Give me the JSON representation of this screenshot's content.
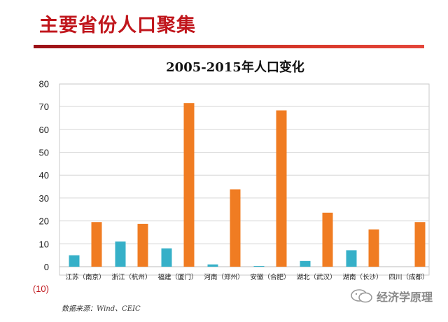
{
  "slide": {
    "title": "主要省份人口聚集",
    "source_note": "数据来源：Wind、CEIC",
    "watermark": "经济学原理"
  },
  "colors": {
    "title": "#c0161c",
    "series_teal": "#36b0c8",
    "series_orange": "#f07c22"
  },
  "chart_data": {
    "type": "bar",
    "title": "2005-2015年人口变化",
    "xlabel": "",
    "ylabel": "",
    "ylim": [
      -10,
      80
    ],
    "yticks": [
      0,
      10,
      20,
      30,
      40,
      50,
      60,
      70,
      80
    ],
    "ytick_labels": [
      "0",
      "10",
      "20",
      "30",
      "40",
      "50",
      "60",
      "70",
      "80"
    ],
    "negative_tick_label": "(10)",
    "categories": [
      "江苏（南京）",
      "浙江（杭州）",
      "福建（厦门）",
      "河南（郑州）",
      "安徽（合肥）",
      "湖北（武汉）",
      "湖南（长沙）",
      "四川（成都）"
    ],
    "series": [
      {
        "color": "#36b0c8",
        "values": [
          5,
          11,
          8,
          1,
          0.3,
          2.5,
          7.2,
          0
        ]
      },
      {
        "color": "#f07c22",
        "values": [
          19.5,
          18.7,
          71.5,
          33.8,
          68.3,
          23.6,
          16.3,
          19.5
        ]
      }
    ],
    "grid": "horizontal",
    "legend": "none"
  }
}
